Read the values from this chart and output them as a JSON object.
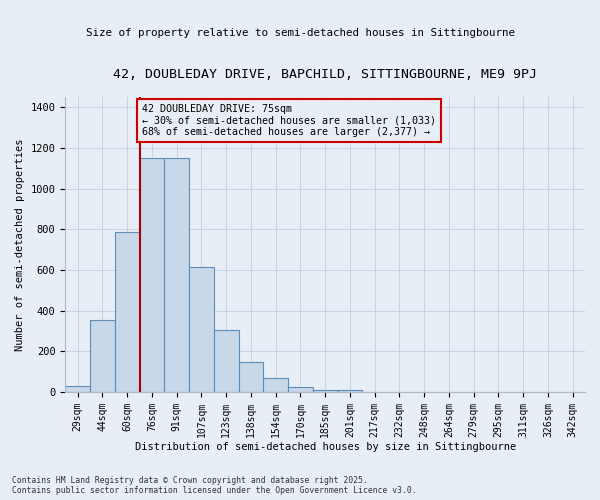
{
  "title_line1": "42, DOUBLEDAY DRIVE, BAPCHILD, SITTINGBOURNE, ME9 9PJ",
  "title_line2": "Size of property relative to semi-detached houses in Sittingbourne",
  "xlabel": "Distribution of semi-detached houses by size in Sittingbourne",
  "ylabel": "Number of semi-detached properties",
  "categories": [
    "29sqm",
    "44sqm",
    "60sqm",
    "76sqm",
    "91sqm",
    "107sqm",
    "123sqm",
    "138sqm",
    "154sqm",
    "170sqm",
    "185sqm",
    "201sqm",
    "217sqm",
    "232sqm",
    "248sqm",
    "264sqm",
    "279sqm",
    "295sqm",
    "311sqm",
    "326sqm",
    "342sqm"
  ],
  "values": [
    30,
    355,
    785,
    1150,
    1150,
    615,
    305,
    145,
    70,
    22,
    12,
    12,
    0,
    0,
    0,
    0,
    0,
    0,
    0,
    0,
    0
  ],
  "bar_color": "#c8d8e8",
  "bar_edge_color": "#5b8db8",
  "bar_linewidth": 0.8,
  "vline_color": "#aa0000",
  "annotation_title": "42 DOUBLEDAY DRIVE: 75sqm",
  "annotation_line1": "← 30% of semi-detached houses are smaller (1,033)",
  "annotation_line2": "68% of semi-detached houses are larger (2,377) →",
  "annotation_box_edgecolor": "#cc0000",
  "ylim": [
    0,
    1450
  ],
  "yticks": [
    0,
    200,
    400,
    600,
    800,
    1000,
    1200,
    1400
  ],
  "grid_color": "#c5d5e5",
  "bg_color": "#e8eef5",
  "footer1": "Contains HM Land Registry data © Crown copyright and database right 2025.",
  "footer2": "Contains public sector information licensed under the Open Government Licence v3.0."
}
